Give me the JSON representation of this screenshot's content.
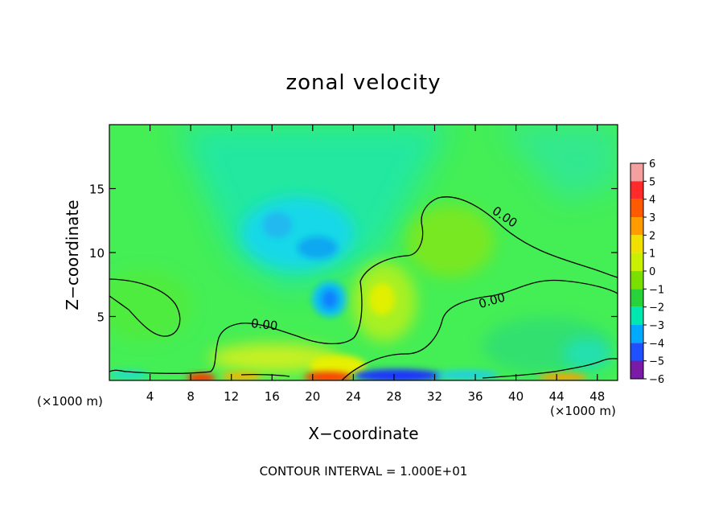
{
  "chart_data": {
    "type": "heatmap",
    "title": "zonal velocity",
    "xlabel": "X−coordinate",
    "ylabel": "Z−coordinate",
    "x_unit": "(×1000 m)",
    "xlim": [
      0,
      50
    ],
    "ylim": [
      0,
      20
    ],
    "x_ticks": [
      4,
      8,
      12,
      16,
      20,
      24,
      28,
      32,
      36,
      40,
      44,
      48
    ],
    "y_ticks": [
      5,
      10,
      15
    ],
    "contour_label": "0.00",
    "footer": "CONTOUR INTERVAL = 1.000E+01",
    "colorbar": {
      "labels": [
        "6",
        "5",
        "4",
        "3",
        "2",
        "1",
        "0",
        "−1",
        "−2",
        "−3",
        "−4",
        "−5",
        "−6"
      ],
      "colors": [
        "#f5a0a0",
        "#ff2a2a",
        "#ff5a00",
        "#ff9c00",
        "#f0e000",
        "#c8f000",
        "#7ae000",
        "#28d23a",
        "#00e8b0",
        "#00aaff",
        "#1e50ff",
        "#0000a0",
        "#7a1aa6"
      ]
    },
    "fields": {
      "background": "#40f060",
      "features": [
        {
          "name": "upper-left-green-region",
          "x": 5,
          "z": 15,
          "value": 0.3
        },
        {
          "name": "negative-cell-upper",
          "x": 17,
          "z": 11,
          "value": -3
        },
        {
          "name": "negative-core-small",
          "x": 21,
          "z": 6,
          "value": -3
        },
        {
          "name": "positive-cell-center",
          "x": 27,
          "z": 6,
          "value": 1.8
        },
        {
          "name": "strong-positive-surface",
          "x": 21,
          "z": 0.3,
          "value": 5
        },
        {
          "name": "strong-negative-surface",
          "x": 28,
          "z": 0.3,
          "value": -5
        }
      ]
    }
  }
}
